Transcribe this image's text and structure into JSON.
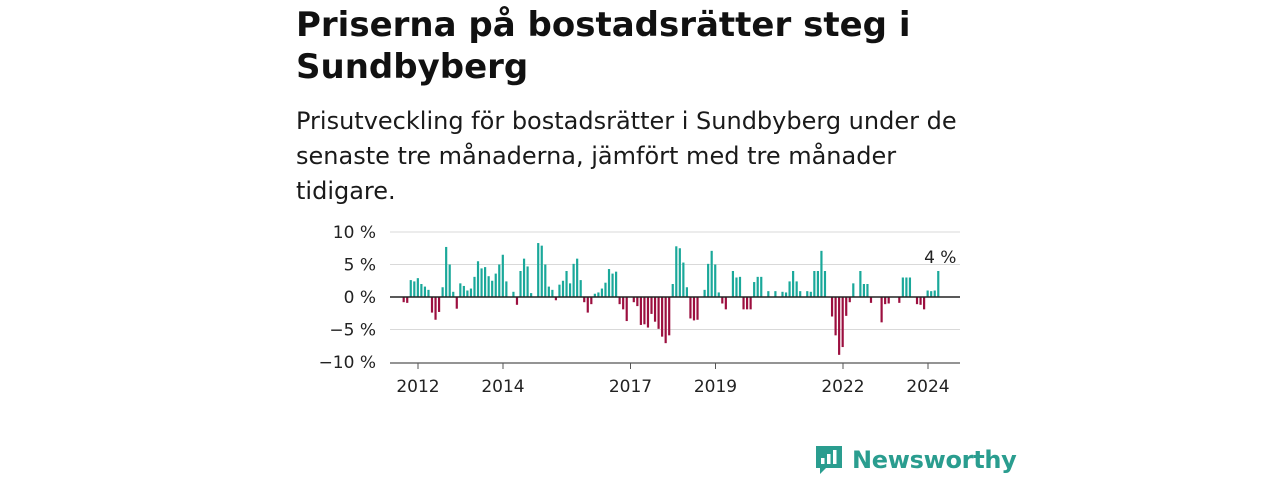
{
  "title": "Priserna på bostadsrätter steg i Sundbyberg",
  "subtitle": "Prisutveckling för bostadsrätter i Sundbyberg under de senaste tre månaderna, jämfört med tre månader tidigare.",
  "brand": {
    "name": "Newsworthy",
    "color": "#2a9d8f"
  },
  "colors": {
    "positive": "#1aa89a",
    "negative": "#9c0f3f",
    "zero_line": "#222222",
    "grid": "#d9d9d9"
  },
  "chart_data": {
    "type": "bar",
    "ylim": [
      -10,
      10
    ],
    "y_ticks": [
      10,
      5,
      0,
      -5,
      -10
    ],
    "y_tick_labels": [
      "10 %",
      "5 %",
      "0 %",
      "−5 %",
      "−10 %"
    ],
    "x_ticks": [
      2012,
      2014,
      2017,
      2019,
      2022,
      2024
    ],
    "x_tick_labels": [
      "2012",
      "2014",
      "2017",
      "2019",
      "2022",
      "2024"
    ],
    "x_start": 2011.33,
    "x_step": 0.0833,
    "grid": true,
    "last_label": "4 %",
    "values": [
      0,
      0,
      0,
      0,
      -0.8,
      -0.9,
      2.6,
      2.4,
      2.9,
      2.0,
      1.6,
      1.1,
      -2.4,
      -3.5,
      -2.3,
      1.5,
      7.7,
      5.0,
      0.8,
      -1.8,
      2.1,
      1.7,
      1.0,
      1.3,
      3.1,
      5.5,
      4.4,
      4.6,
      3.2,
      2.5,
      3.6,
      5.0,
      6.5,
      2.4,
      0.0,
      0.8,
      -1.2,
      4.0,
      5.9,
      4.7,
      0.6,
      0.0,
      8.3,
      7.9,
      5.0,
      1.6,
      1.1,
      -0.5,
      1.9,
      2.5,
      4.0,
      2.1,
      5.1,
      5.9,
      2.6,
      -0.8,
      -2.4,
      -1.1,
      0.5,
      0.7,
      1.3,
      2.2,
      4.3,
      3.6,
      3.9,
      -1.1,
      -1.9,
      -3.7,
      0.0,
      -0.8,
      -1.4,
      -4.3,
      -4.2,
      -4.7,
      -2.6,
      -3.8,
      -4.9,
      -6.1,
      -7.1,
      -5.9,
      2.0,
      7.8,
      7.5,
      5.3,
      1.5,
      -3.3,
      -3.6,
      -3.5,
      0.0,
      1.1,
      5.1,
      7.1,
      5.0,
      0.7,
      -1.0,
      -1.9,
      0.0,
      4.0,
      3.0,
      3.1,
      -1.9,
      -1.9,
      -1.9,
      2.3,
      3.1,
      3.1,
      0.0,
      0.9,
      0.0,
      0.9,
      0.0,
      0.8,
      0.7,
      2.4,
      4.0,
      2.4,
      0.9,
      0.0,
      0.9,
      0.8,
      4.0,
      4.0,
      7.1,
      4.0,
      0.0,
      -3.0,
      -5.9,
      -8.9,
      -7.7,
      -2.9,
      -0.8,
      2.1,
      0.0,
      4.0,
      2.0,
      2.0,
      -0.9,
      0.0,
      0.0,
      -3.9,
      -1.1,
      -1.0,
      0.0,
      0.0,
      -0.9,
      3.0,
      3.0,
      3.0,
      0.0,
      -1.1,
      -1.2,
      -1.9,
      1.0,
      0.9,
      1.0,
      4.0
    ]
  }
}
